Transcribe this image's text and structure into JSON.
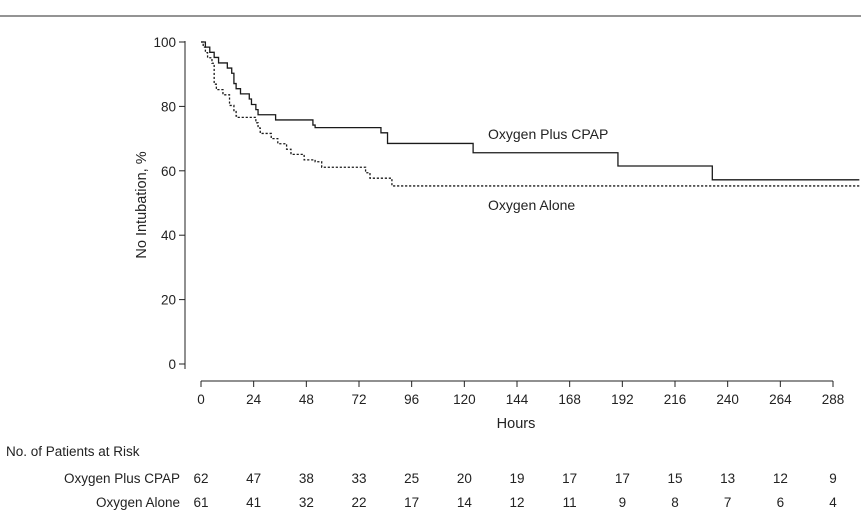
{
  "chart_data": {
    "type": "line",
    "title": "",
    "xlabel": "Hours",
    "ylabel": "No Intubation, %",
    "xlim": [
      0,
      300
    ],
    "ylim": [
      0,
      100
    ],
    "x_ticks": [
      0,
      24,
      48,
      72,
      96,
      120,
      144,
      168,
      192,
      216,
      240,
      264,
      288
    ],
    "y_ticks": [
      0,
      20,
      40,
      60,
      80,
      100
    ],
    "grid": false,
    "legend": "direct labels on lines",
    "series": [
      {
        "name": "Oxygen Plus CPAP",
        "line_style": "solid",
        "points": [
          [
            0,
            100
          ],
          [
            2,
            98.4
          ],
          [
            4,
            96.8
          ],
          [
            6,
            95.2
          ],
          [
            8,
            93.5
          ],
          [
            12,
            91.9
          ],
          [
            14,
            90.3
          ],
          [
            15,
            87.1
          ],
          [
            16,
            85.5
          ],
          [
            18,
            83.9
          ],
          [
            22,
            82.3
          ],
          [
            23,
            80.6
          ],
          [
            25,
            79
          ],
          [
            26,
            77.4
          ],
          [
            34,
            75.8
          ],
          [
            51,
            74.2
          ],
          [
            52,
            73.4
          ],
          [
            82,
            71.8
          ],
          [
            85,
            68.5
          ],
          [
            124,
            65.6
          ],
          [
            190,
            61.5
          ],
          [
            233,
            57.2
          ],
          [
            300,
            57.2
          ]
        ]
      },
      {
        "name": "Oxygen Alone",
        "line_style": "dotted",
        "points": [
          [
            0,
            100
          ],
          [
            1,
            98.4
          ],
          [
            2,
            96.7
          ],
          [
            3,
            95.1
          ],
          [
            5,
            93.4
          ],
          [
            6,
            86.9
          ],
          [
            7,
            85.2
          ],
          [
            10,
            83.6
          ],
          [
            13,
            80.3
          ],
          [
            15,
            78.7
          ],
          [
            16,
            77
          ],
          [
            17,
            76.6
          ],
          [
            25,
            74.9
          ],
          [
            26,
            73.3
          ],
          [
            27,
            71.6
          ],
          [
            32,
            70
          ],
          [
            35,
            68.4
          ],
          [
            39,
            66.7
          ],
          [
            41,
            65.1
          ],
          [
            47,
            63.4
          ],
          [
            52,
            62.8
          ],
          [
            55,
            61.1
          ],
          [
            75,
            59.4
          ],
          [
            77,
            57.7
          ],
          [
            87,
            55.3
          ],
          [
            300,
            55.3
          ]
        ]
      }
    ]
  },
  "risk_table": {
    "heading": "No. of Patients at Risk",
    "rows": [
      {
        "label": "Oxygen Plus CPAP",
        "values": [
          62,
          47,
          38,
          33,
          25,
          20,
          19,
          17,
          17,
          15,
          13,
          12,
          9
        ]
      },
      {
        "label": "Oxygen Alone",
        "values": [
          61,
          41,
          32,
          22,
          17,
          14,
          12,
          11,
          9,
          8,
          7,
          6,
          4
        ]
      }
    ]
  }
}
